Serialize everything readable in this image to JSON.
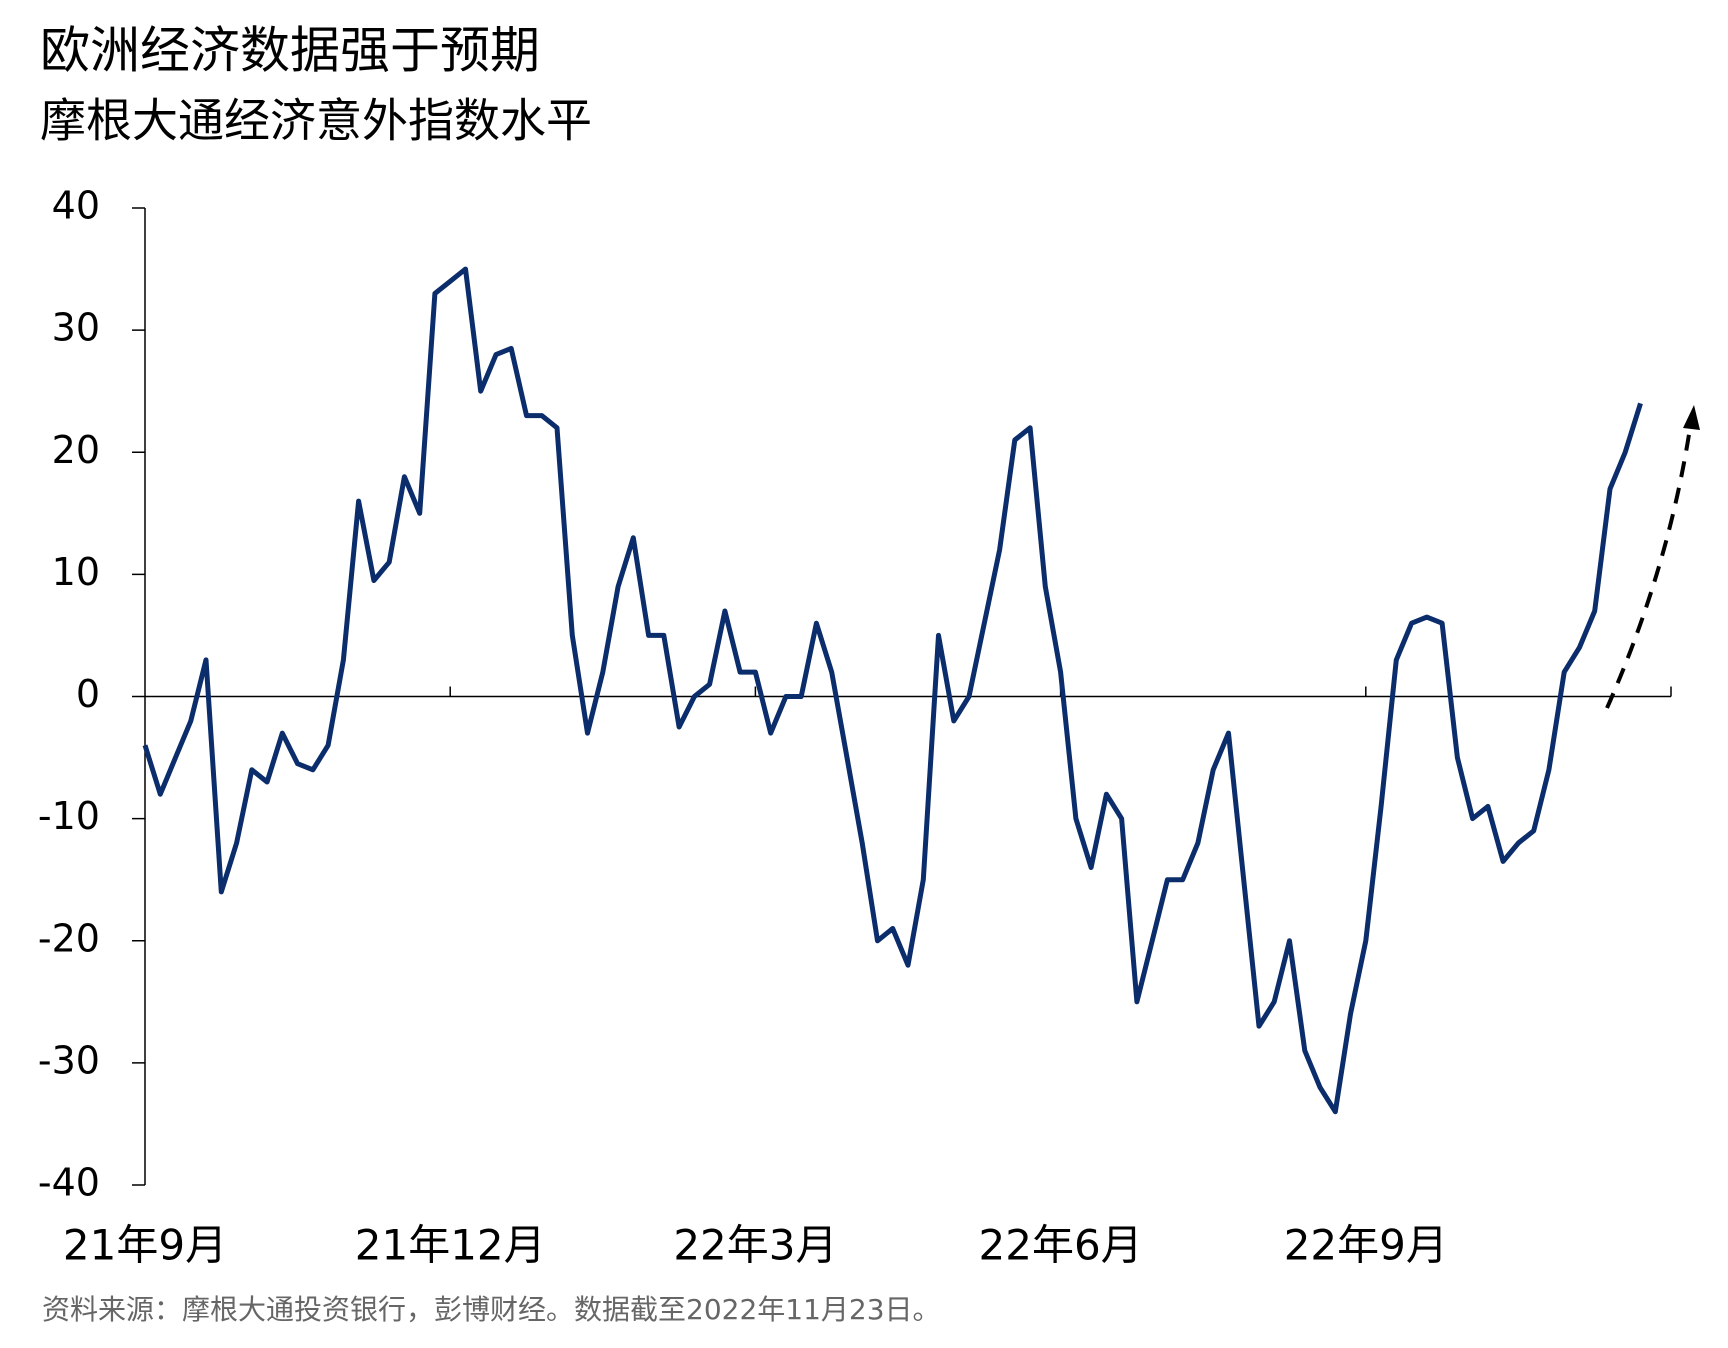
{
  "chart_data": {
    "type": "line",
    "title": "欧洲经济数据强于预期",
    "subtitle": "摩根大通经济意外指数水平",
    "source": "资料来源：摩根大通投资银行，彭博财经。数据截至2022年11月23日。",
    "categories": [
      "21年9月",
      null,
      null,
      null,
      null,
      null,
      null,
      null,
      null,
      null,
      null,
      null,
      null,
      null,
      null,
      null,
      null,
      null,
      null,
      null,
      "21年12月",
      null,
      null,
      null,
      null,
      null,
      null,
      null,
      null,
      null,
      null,
      null,
      null,
      null,
      null,
      null,
      null,
      null,
      null,
      null,
      "22年3月",
      null,
      null,
      null,
      null,
      null,
      null,
      null,
      null,
      null,
      null,
      null,
      null,
      null,
      null,
      null,
      null,
      null,
      null,
      null,
      "22年6月",
      null,
      null,
      null,
      null,
      null,
      null,
      null,
      null,
      null,
      null,
      null,
      null,
      null,
      null,
      null,
      null,
      null,
      null,
      null,
      "22年9月",
      null,
      null,
      null,
      null,
      null,
      null,
      null,
      null,
      null,
      null,
      null,
      null,
      null,
      null,
      null,
      null,
      null,
      null,
      null,
      null
    ],
    "values": [
      -4,
      -8,
      -5,
      -2,
      3,
      -16,
      -12,
      -6,
      -7,
      -3,
      -5.5,
      -6,
      -4,
      3,
      16,
      9.5,
      11,
      18,
      15,
      33,
      34,
      35,
      25,
      28,
      28.5,
      23,
      23,
      22,
      5,
      -3,
      2,
      9,
      13,
      5,
      5,
      -2.5,
      0,
      1,
      7,
      2,
      2,
      -3,
      0,
      0,
      6,
      2,
      -5,
      -12,
      -20,
      -19,
      -22,
      -15,
      5,
      -2,
      0,
      6,
      12,
      21,
      22,
      9,
      2,
      -10,
      -14,
      -8,
      -10,
      -25,
      -20,
      -15,
      -15,
      -12,
      -6,
      -3,
      -15,
      -27,
      -25,
      -20,
      -29,
      -32,
      -34,
      -26,
      -20,
      -9,
      3,
      6,
      6.5,
      6,
      -5,
      -10,
      -9,
      -13.5,
      -12,
      -11,
      -6,
      2,
      4,
      7,
      17,
      20,
      24,
      null,
      null
    ],
    "color": "#0b2d6b",
    "ylim": [
      -40,
      40
    ],
    "yticks": [
      -40,
      -30,
      -20,
      -10,
      0,
      10,
      20,
      30,
      40
    ]
  }
}
